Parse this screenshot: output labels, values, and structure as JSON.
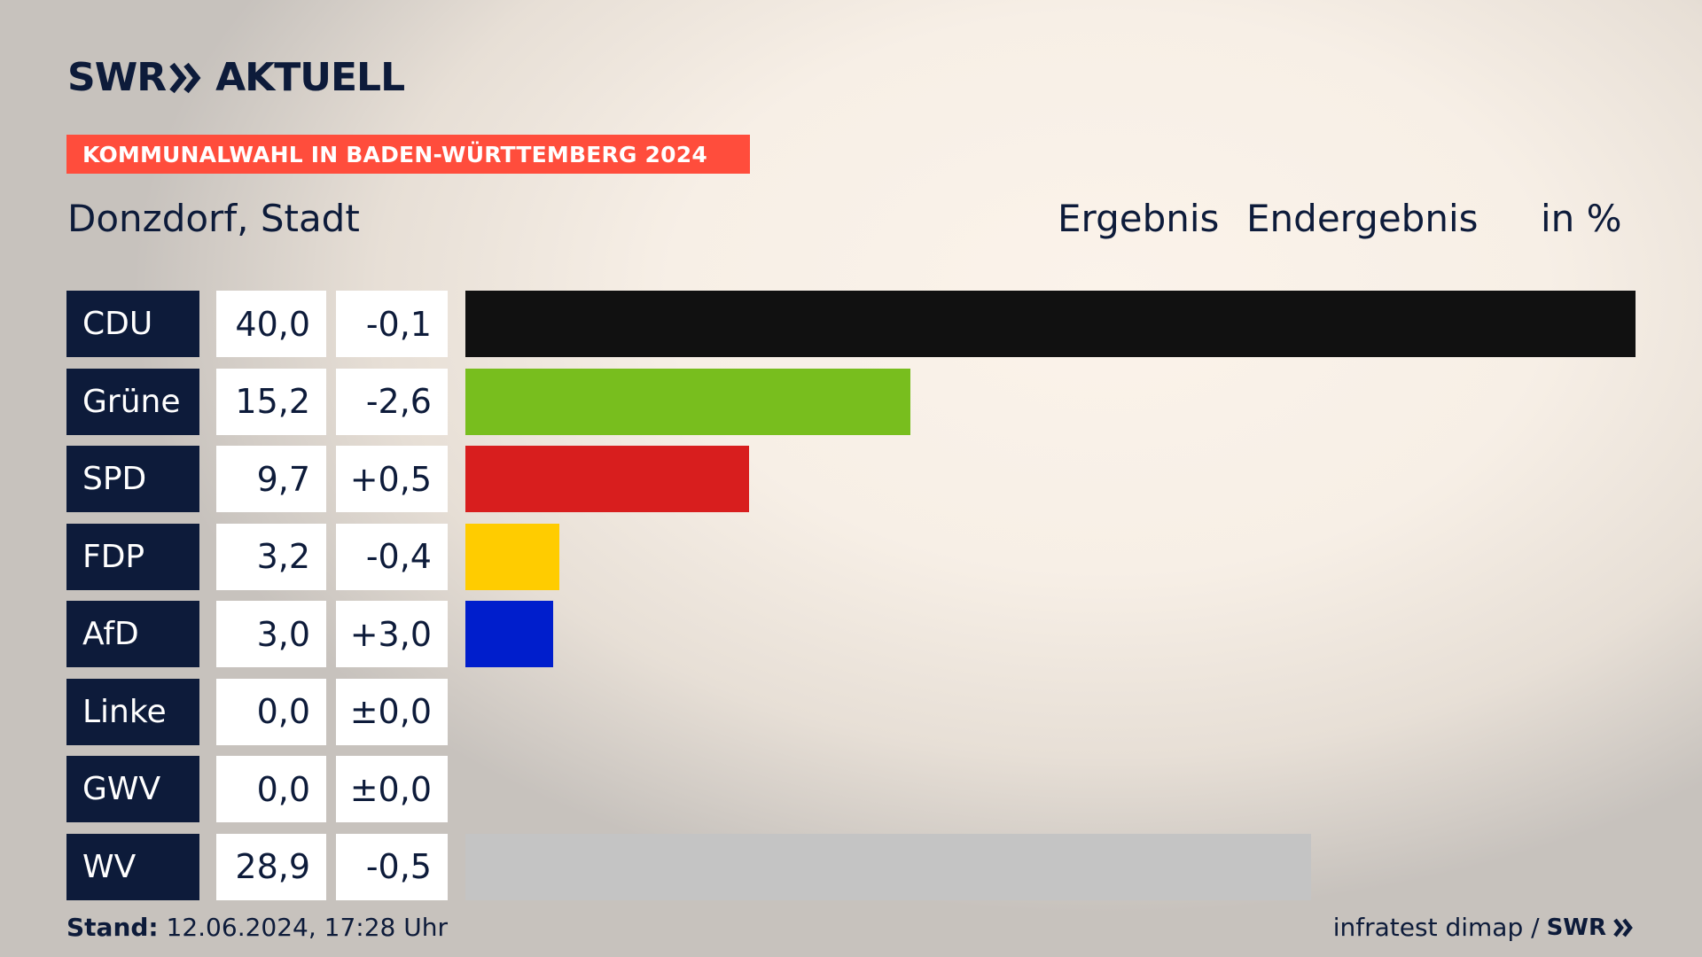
{
  "header": {
    "logo_left": "SWR",
    "logo_right": "AKTUELL",
    "banner": "KOMMUNALWAHL IN BADEN-WÜRTTEMBERG 2024",
    "place": "Donzdorf, Stadt",
    "col_result": "Ergebnis",
    "col_final": "Endergebnis",
    "col_unit": "in %"
  },
  "footer": {
    "stand_label": "Stand:",
    "stand_value": "12.06.2024, 17:28 Uhr",
    "source": "infratest dimap /",
    "source_logo": "SWR"
  },
  "colors": {
    "navy": "#0d1b3a",
    "banner": "#ff4d3c"
  },
  "chart_data": {
    "type": "bar",
    "title": "Donzdorf, Stadt",
    "unit": "%",
    "xlim": [
      0,
      40
    ],
    "categories": [
      "CDU",
      "Grüne",
      "SPD",
      "FDP",
      "AfD",
      "Linke",
      "GWV",
      "WV"
    ],
    "values": [
      40.0,
      15.2,
      9.7,
      3.2,
      3.0,
      0.0,
      0.0,
      28.9
    ],
    "value_labels": [
      "40,0",
      "15,2",
      "9,7",
      "3,2",
      "3,0",
      "0,0",
      "0,0",
      "28,9"
    ],
    "diff_labels": [
      "-0,1",
      "-2,6",
      "+0,5",
      "-0,4",
      "+3,0",
      "±0,0",
      "±0,0",
      "-0,5"
    ],
    "colors": [
      "#111111",
      "#78be1e",
      "#d81e1e",
      "#ffcc00",
      "#001ecc",
      "#bf0070",
      "#9c9c9c",
      "#c4c4c4"
    ]
  }
}
